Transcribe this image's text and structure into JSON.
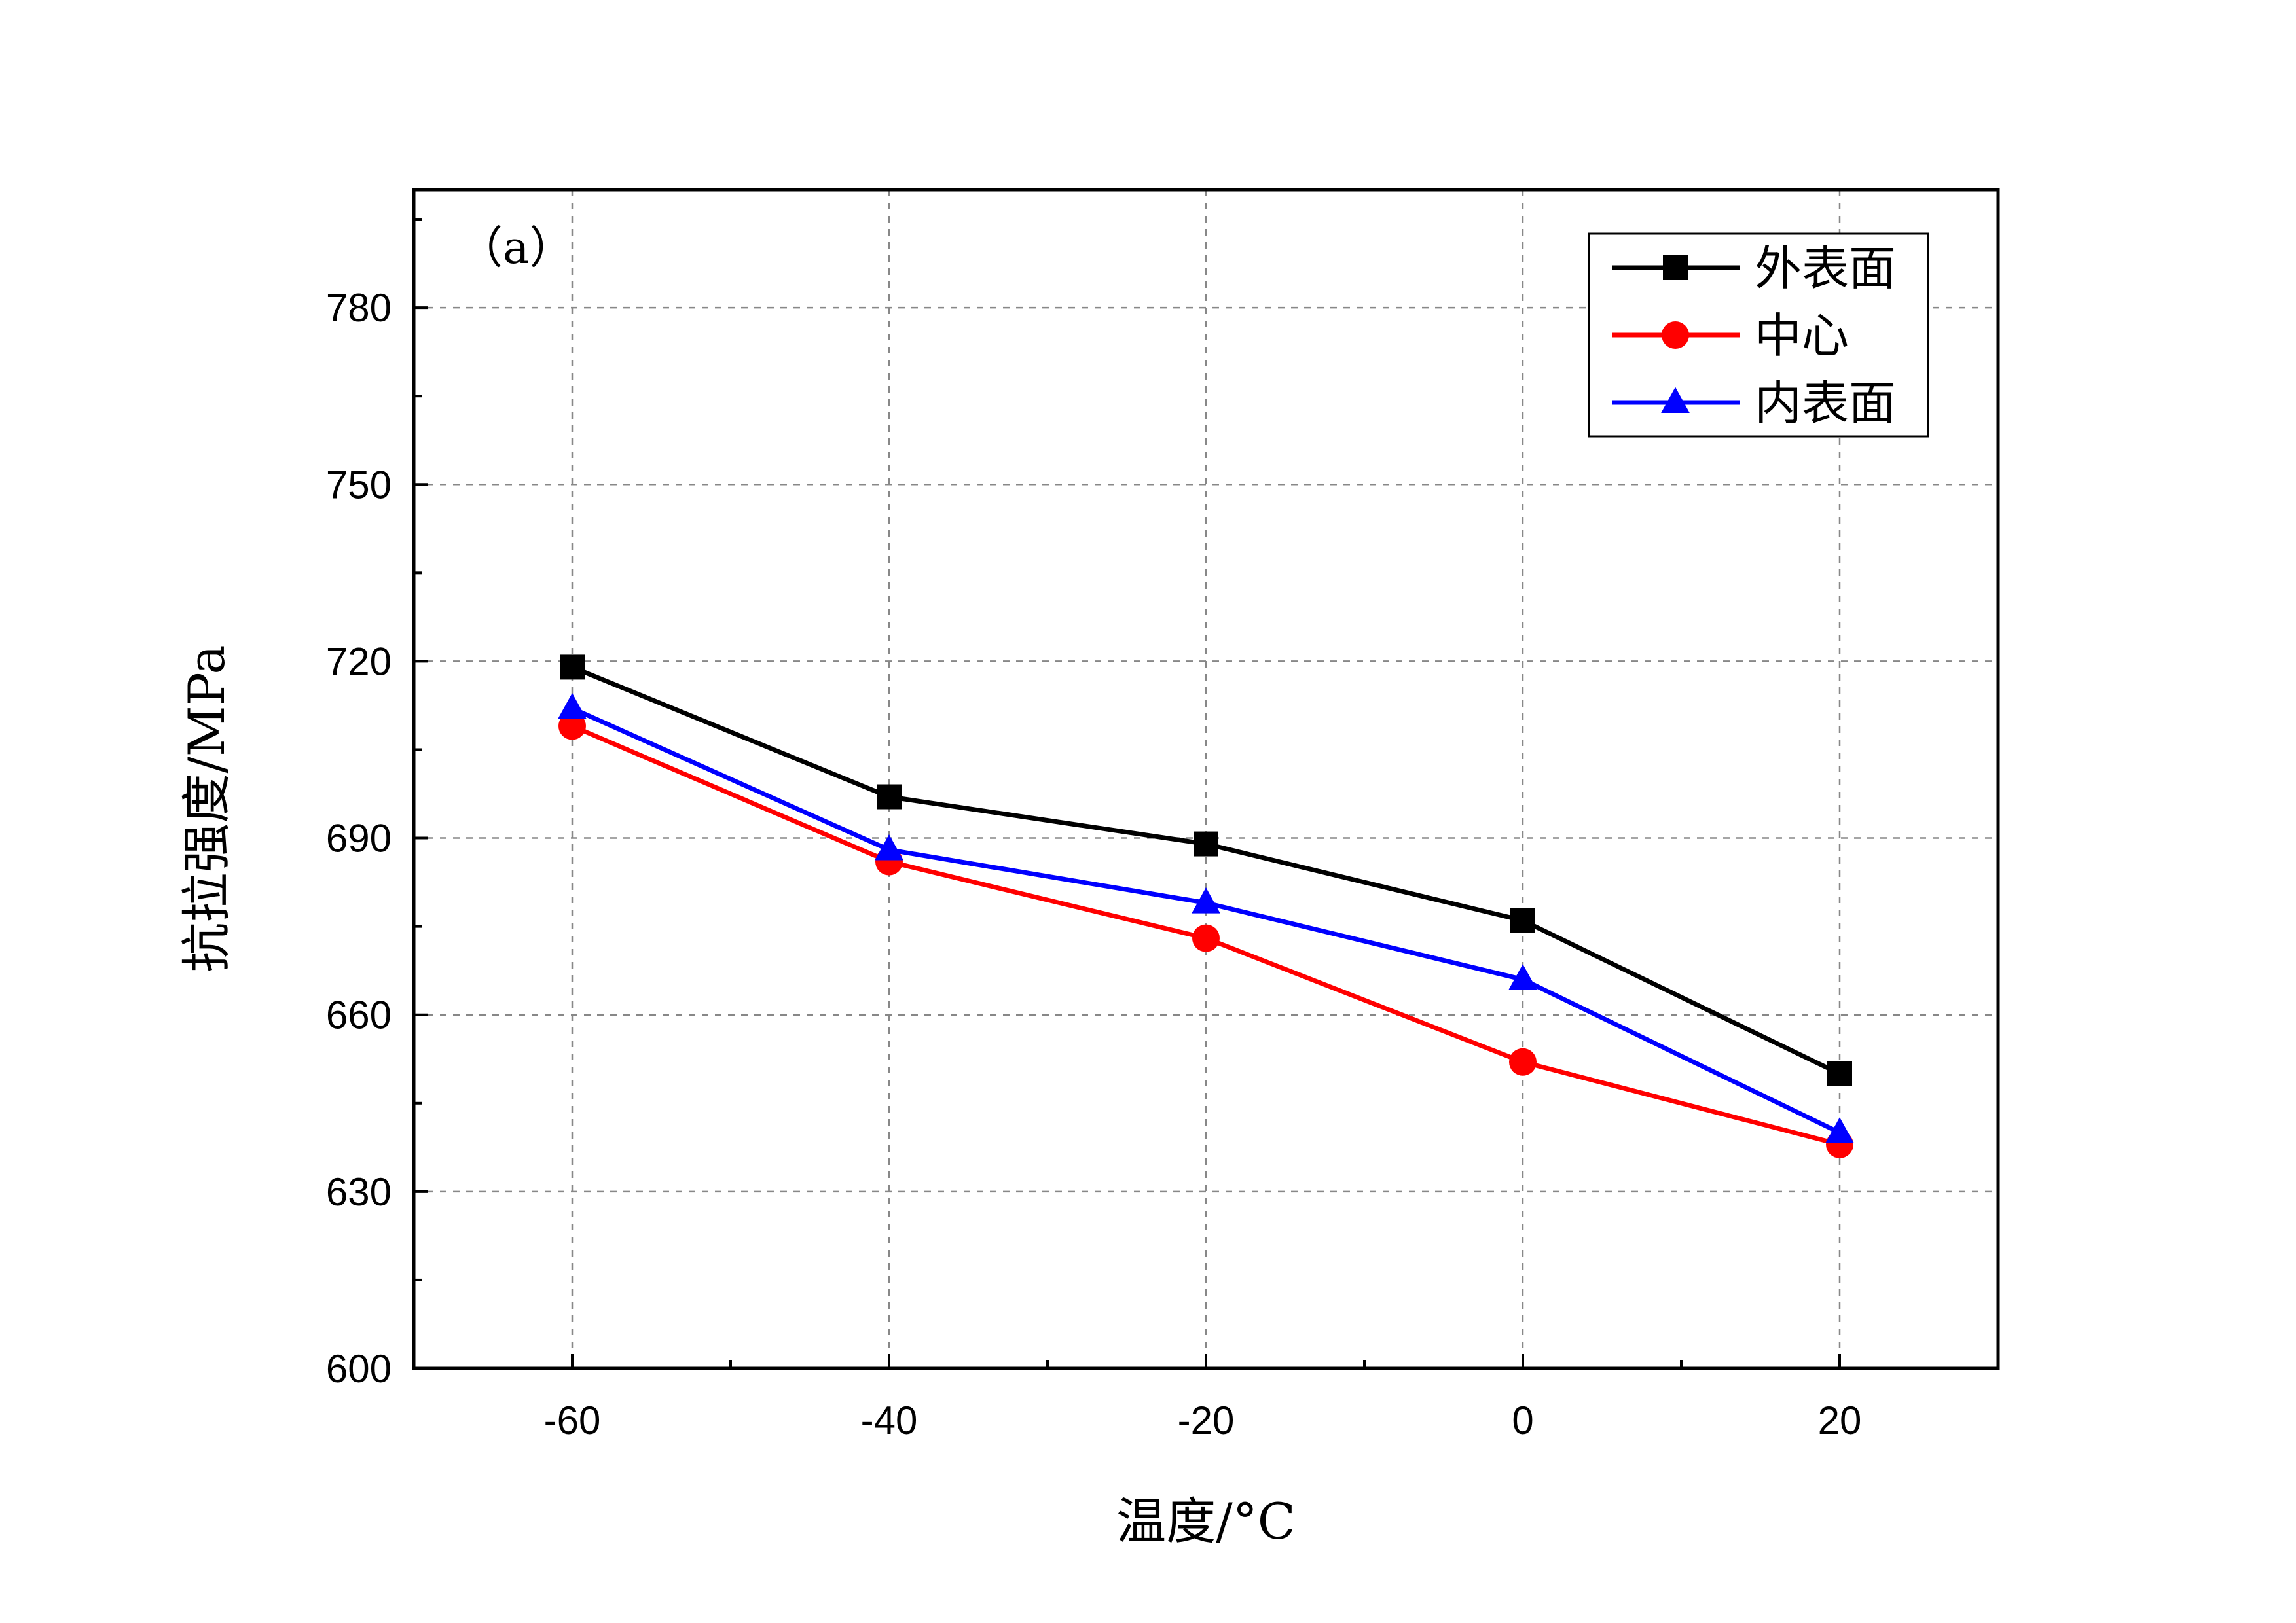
{
  "chart_data": {
    "type": "line",
    "panel_label": "（a）",
    "xlabel": "温度/°C",
    "ylabel": "抗拉强度/MPa",
    "x": [
      -60,
      -40,
      -20,
      0,
      20
    ],
    "xlim": [
      -70,
      30
    ],
    "ylim": [
      600,
      800
    ],
    "xticks": [
      -60,
      -40,
      -20,
      0,
      20
    ],
    "yticks": [
      600,
      630,
      660,
      690,
      720,
      750,
      780
    ],
    "grid": true,
    "legend_position": "top-right",
    "series": [
      {
        "name": "外表面",
        "color": "#000000",
        "marker": "square",
        "values": [
          719,
          697,
          689,
          676,
          650
        ]
      },
      {
        "name": "中心",
        "color": "#ff0000",
        "marker": "circle",
        "values": [
          709,
          686,
          673,
          652,
          638
        ]
      },
      {
        "name": "内表面",
        "color": "#0000ff",
        "marker": "triangle",
        "values": [
          712,
          688,
          679,
          666,
          640
        ]
      }
    ]
  }
}
